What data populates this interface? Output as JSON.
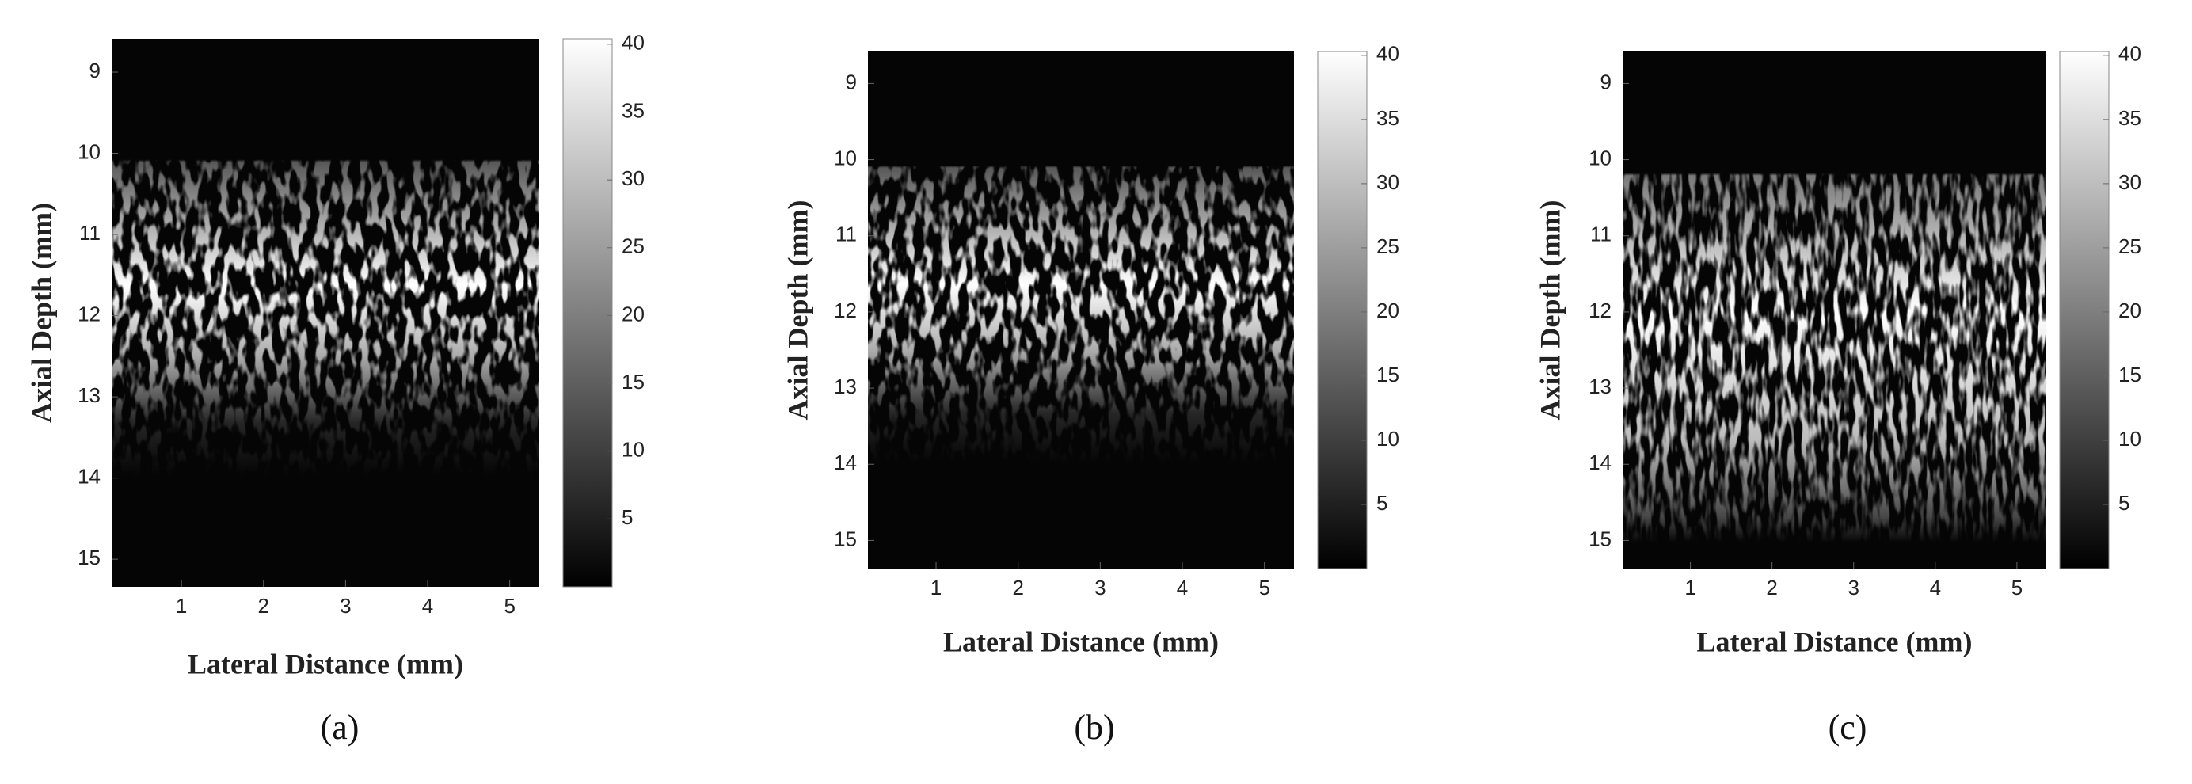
{
  "chart_data": [
    {
      "type": "image",
      "panel_label": "(a)",
      "xlabel": "Lateral Distance (mm)",
      "ylabel": "Axial Depth (mm)",
      "xlim": [
        0.15,
        5.36
      ],
      "xticks": [
        1,
        2,
        3,
        4,
        5
      ],
      "ylim": [
        8.59,
        15.34
      ],
      "yticks": [
        9,
        10,
        11,
        12,
        13,
        14,
        15
      ],
      "colorbar": {
        "clim": [
          0,
          40.4
        ],
        "ticks": [
          5,
          10,
          15,
          20,
          25,
          30,
          35,
          40
        ]
      }
    },
    {
      "type": "image",
      "panel_label": "(b)",
      "xlabel": "Lateral Distance (mm)",
      "ylabel": "Axial Depth (mm)",
      "xlim": [
        0.17,
        5.36
      ],
      "xticks": [
        1,
        2,
        3,
        4,
        5
      ],
      "ylim": [
        8.58,
        15.37
      ],
      "yticks": [
        9,
        10,
        11,
        12,
        13,
        14,
        15
      ],
      "colorbar": {
        "clim": [
          0,
          40.3
        ],
        "ticks": [
          5,
          10,
          15,
          20,
          25,
          30,
          35,
          40
        ]
      }
    },
    {
      "type": "image",
      "panel_label": "(c)",
      "xlabel": "Lateral Distance (mm)",
      "ylabel": "Axial Depth (mm)",
      "xlim": [
        0.17,
        5.36
      ],
      "xticks": [
        1,
        2,
        3,
        4,
        5
      ],
      "ylim": [
        8.58,
        15.37
      ],
      "yticks": [
        9,
        10,
        11,
        12,
        13,
        14,
        15
      ],
      "colorbar": {
        "clim": [
          0,
          40.3
        ],
        "ticks": [
          5,
          10,
          15,
          20,
          25,
          30,
          35,
          40
        ]
      }
    }
  ]
}
